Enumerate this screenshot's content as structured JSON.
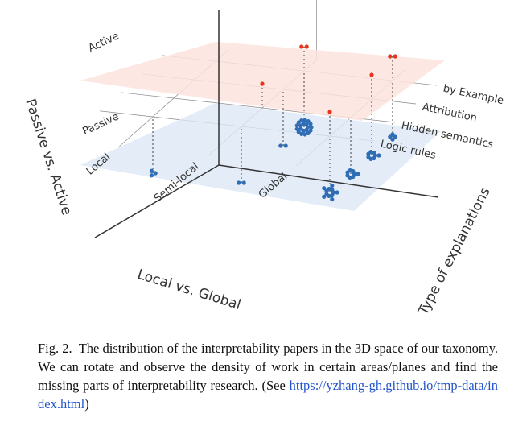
{
  "chart_data": {
    "type": "scatter3d",
    "x_label": "Local vs. Global",
    "y_label": "Type of explanations",
    "z_label": "Passive vs. Active",
    "x_categories": [
      "Local",
      "Semi-local",
      "Global"
    ],
    "y_categories": [
      "Logic rules",
      "Hidden semantics",
      "Attribution",
      "by Example"
    ],
    "z_categories": [
      "Passive",
      "Active"
    ],
    "series": [
      {
        "name": "Passive",
        "color": "#2f6db5",
        "points": [
          {
            "x": "Local",
            "y": "Logic rules",
            "count": 3
          },
          {
            "x": "Semi-local",
            "y": "Logic rules",
            "count": 2
          },
          {
            "x": "Semi-local",
            "y": "by Example",
            "count": 20
          },
          {
            "x": "Semi-local",
            "y": "Attribution",
            "count": 2
          },
          {
            "x": "Global",
            "y": "by Example",
            "count": 4
          },
          {
            "x": "Global",
            "y": "Logic rules",
            "count": 12
          },
          {
            "x": "Global",
            "y": "Hidden semantics",
            "count": 8
          },
          {
            "x": "Global",
            "y": "Attribution",
            "count": 8
          }
        ]
      },
      {
        "name": "Active",
        "color": "#e8341c",
        "points": [
          {
            "x": "Semi-local",
            "y": "by Example",
            "count": 2
          },
          {
            "x": "Semi-local",
            "y": "Hidden semantics",
            "count": 1
          },
          {
            "x": "Global",
            "y": "Logic rules",
            "count": 1
          },
          {
            "x": "Global",
            "y": "Attribution",
            "count": 1
          },
          {
            "x": "Global",
            "y": "by Example",
            "count": 2
          }
        ]
      }
    ]
  },
  "caption": {
    "label": "Fig. 2.",
    "text": "The distribution of the interpretability papers in the 3D space of our taxonomy. We can rotate and observe the density of work in certain areas/planes and find the missing parts of interpretability research. (See ",
    "link": "https://yzhang-gh.github.io/tmp-data/index.html",
    "end": ")"
  }
}
